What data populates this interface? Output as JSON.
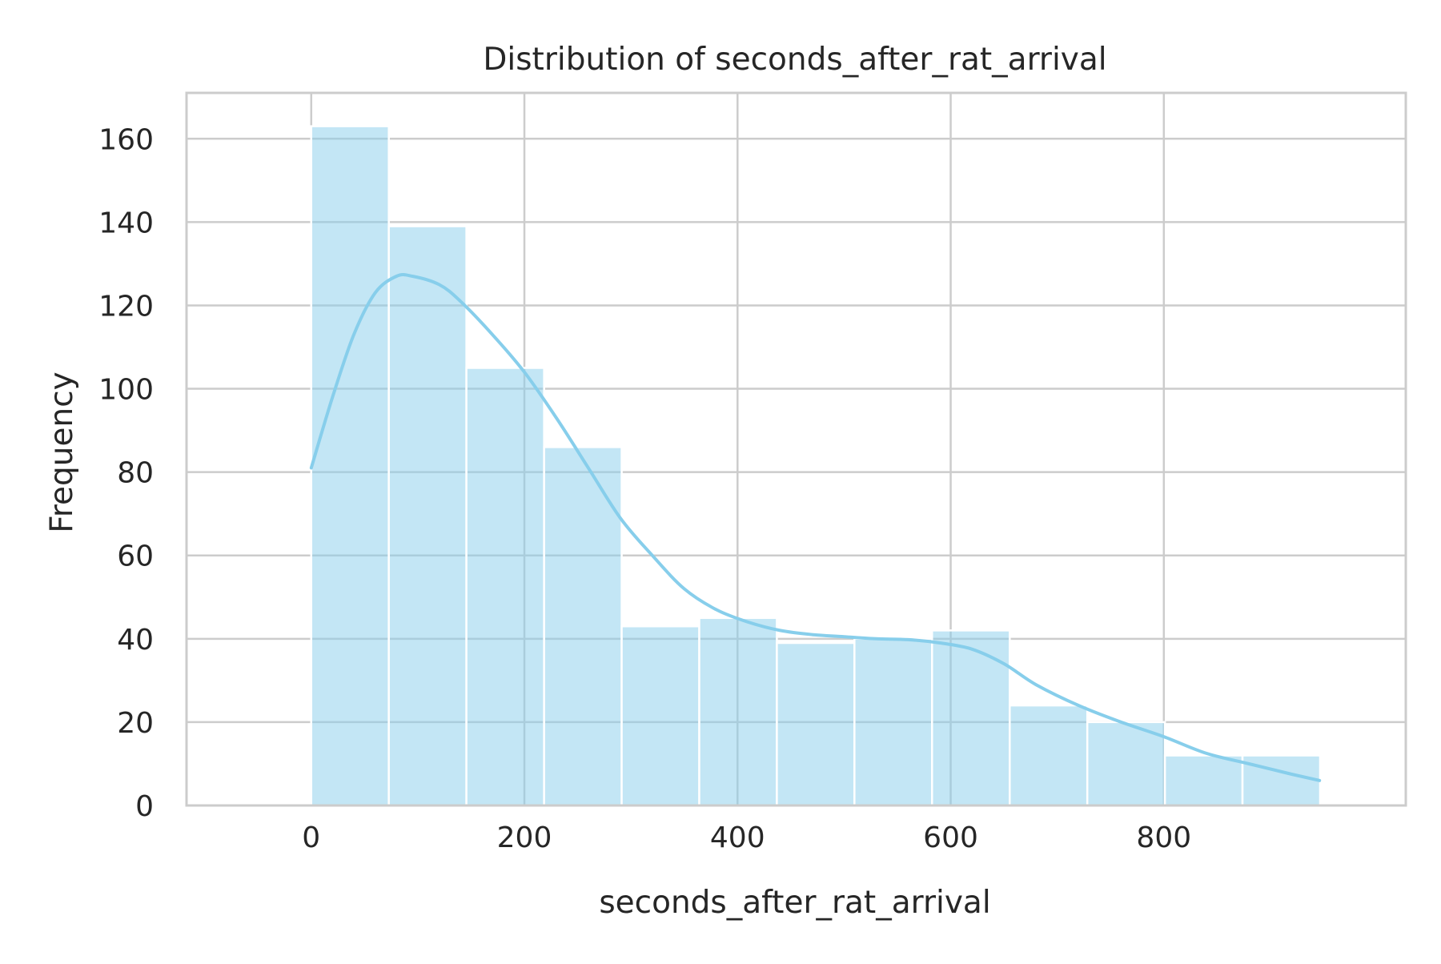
{
  "chart_data": {
    "type": "bar",
    "title": "Distribution of seconds_after_rat_arrival",
    "xlabel": "seconds_after_rat_arrival",
    "ylabel": "Frequency",
    "xlim": [
      -117,
      1027
    ],
    "ylim": [
      0,
      171
    ],
    "xticks": [
      0,
      200,
      400,
      600,
      800
    ],
    "yticks": [
      0,
      20,
      40,
      60,
      80,
      100,
      120,
      140,
      160
    ],
    "grid": true,
    "bins": [
      {
        "x0": 0,
        "x1": 72.8,
        "count": 163
      },
      {
        "x0": 72.8,
        "x1": 145.6,
        "count": 139
      },
      {
        "x0": 145.6,
        "x1": 218.5,
        "count": 105
      },
      {
        "x0": 218.5,
        "x1": 291.3,
        "count": 86
      },
      {
        "x0": 291.3,
        "x1": 364.1,
        "count": 43
      },
      {
        "x0": 364.1,
        "x1": 436.9,
        "count": 45
      },
      {
        "x0": 436.9,
        "x1": 509.7,
        "count": 39
      },
      {
        "x0": 509.7,
        "x1": 582.5,
        "count": 40
      },
      {
        "x0": 582.5,
        "x1": 655.4,
        "count": 42
      },
      {
        "x0": 655.4,
        "x1": 728.2,
        "count": 24
      },
      {
        "x0": 728.2,
        "x1": 801.0,
        "count": 20
      },
      {
        "x0": 801.0,
        "x1": 873.8,
        "count": 12
      },
      {
        "x0": 873.8,
        "x1": 946.6,
        "count": 12
      }
    ],
    "kde": {
      "x": [
        0,
        20,
        40,
        60,
        80,
        95,
        120,
        140,
        170,
        200,
        230,
        260,
        290,
        320,
        350,
        380,
        410,
        440,
        470,
        500,
        530,
        560,
        590,
        620,
        650,
        680,
        720,
        760,
        800,
        840,
        880,
        920,
        946
      ],
      "y": [
        81,
        98,
        113,
        123,
        127,
        127,
        125,
        121,
        113,
        104,
        93,
        81,
        69,
        60,
        52,
        47,
        44,
        42,
        41,
        40.5,
        40,
        39.8,
        39,
        37.5,
        34,
        29,
        24,
        20,
        16.5,
        12.5,
        10,
        7.5,
        6
      ]
    },
    "colors": {
      "bar_fill": "#87ceeb",
      "kde_line": "#87ceeb",
      "grid": "#cccccc",
      "frame": "#cccccc"
    }
  }
}
